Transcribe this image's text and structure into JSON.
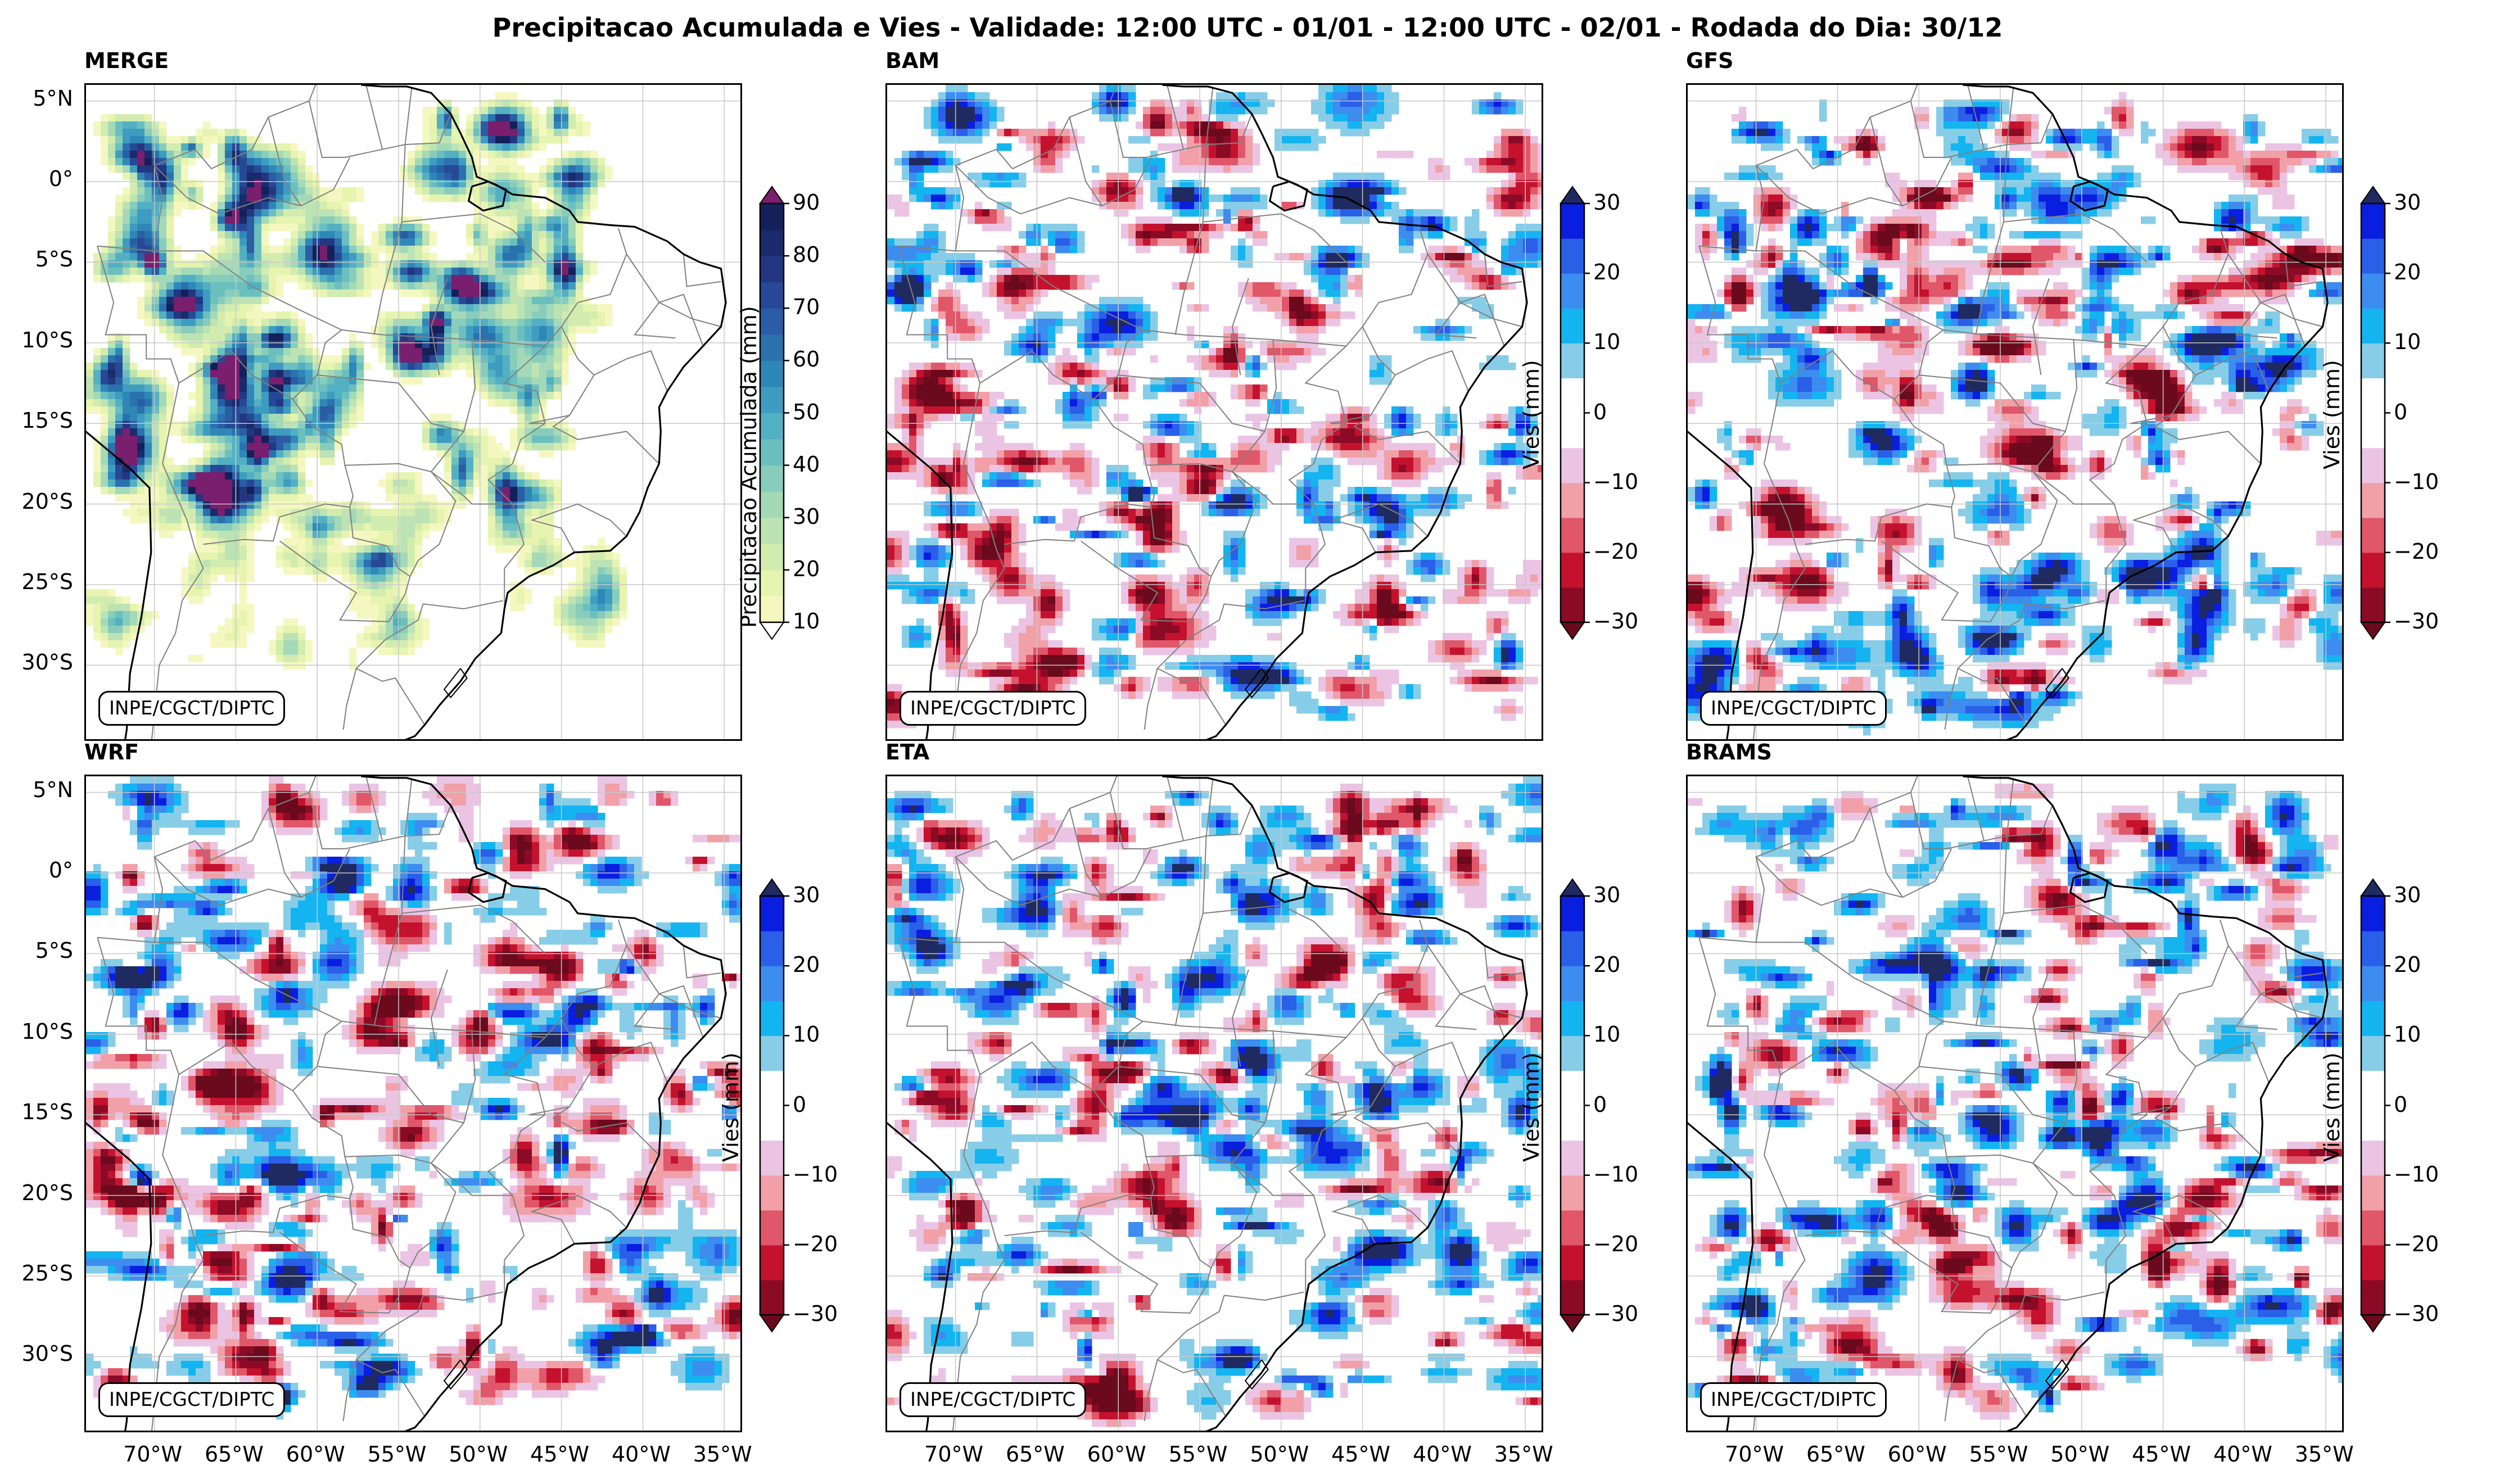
{
  "figure": {
    "suptitle": "Precipitacao Acumulada e Vies - Validade: 12:00 UTC - 01/01 - 12:00 UTC - 02/01 - Rodada do Dia: 30/12",
    "credit": "INPE/CGCT/DIPTC",
    "lat_labels": [
      "5°N",
      "0°",
      "5°S",
      "10°S",
      "15°S",
      "20°S",
      "25°S",
      "30°S"
    ],
    "lon_labels": [
      "70°W",
      "65°W",
      "60°W",
      "55°W",
      "50°W",
      "45°W",
      "40°W",
      "35°W"
    ],
    "panels": [
      {
        "title": "MERGE",
        "field": "precipitation"
      },
      {
        "title": "BAM",
        "field": "bias"
      },
      {
        "title": "GFS",
        "field": "bias"
      },
      {
        "title": "WRF",
        "field": "bias"
      },
      {
        "title": "ETA",
        "field": "bias"
      },
      {
        "title": "BRAMS",
        "field": "bias"
      }
    ],
    "precip_colorbar": {
      "label": "Precipitacao Acumulada (mm)",
      "ticks": [
        "10",
        "20",
        "30",
        "40",
        "50",
        "60",
        "70",
        "80",
        "90"
      ],
      "levels": [
        10,
        15,
        20,
        25,
        30,
        35,
        40,
        45,
        50,
        55,
        60,
        65,
        70,
        75,
        80,
        85,
        90
      ],
      "colors": [
        "#f4f8c0",
        "#e6f4b0",
        "#d2ecb0",
        "#bde3b4",
        "#a4d9b8",
        "#88cdbb",
        "#6bbfbf",
        "#52b0c2",
        "#3d9cc0",
        "#2f87b8",
        "#2a71ad",
        "#2a5da3",
        "#274995",
        "#223780",
        "#1a2a6a",
        "#13205a"
      ],
      "over_color": "#7a1e6e"
    },
    "bias_colorbar": {
      "label": "Vies (mm)",
      "ticks": [
        "30",
        "20",
        "10",
        "0",
        "−10",
        "−20",
        "−30"
      ],
      "levels": [
        -30,
        -25,
        -20,
        -15,
        -10,
        -5,
        0,
        5,
        10,
        15,
        20,
        25,
        30
      ],
      "colors": [
        "#8b0a26",
        "#c4122e",
        "#e0576a",
        "#f2a0a8",
        "#ebc4e4",
        "#ffffff",
        "#ffffff",
        "#87cde8",
        "#14b4f0",
        "#3d8cf0",
        "#2a5fe8",
        "#0a1ee0"
      ],
      "under_color": "#6a0a1c",
      "over_color": "#1e2a60"
    },
    "colors": {
      "coast": "#000000",
      "borders": "#808080",
      "grid": "#c8c8c8"
    }
  }
}
